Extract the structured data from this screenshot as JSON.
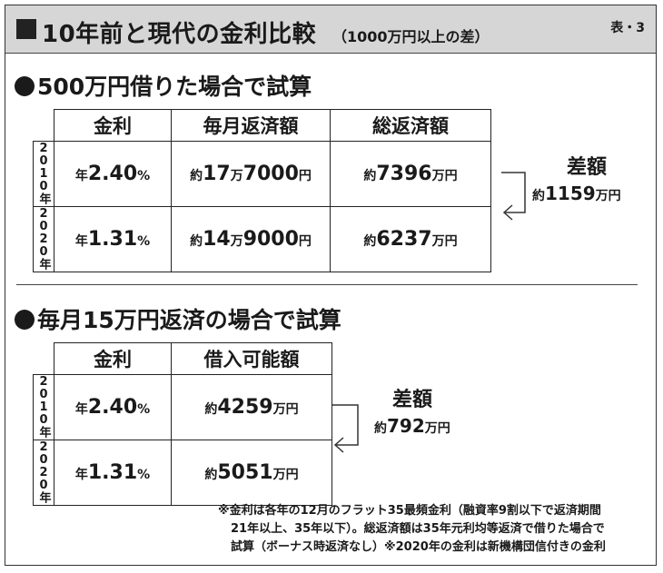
{
  "header": {
    "title": "10年前と現代の金利比較",
    "subtitle": "（1000万円以上の差）",
    "tag": "表・3"
  },
  "section1": {
    "title": "500万円借りた場合で試算",
    "columns": [
      "金利",
      "毎月返済額",
      "総返済額"
    ],
    "rows": [
      {
        "year": "2010年",
        "rate_prefix": "年",
        "rate": "2.40",
        "rate_unit": "%",
        "monthly_prefix": "約",
        "monthly_a": "17",
        "monthly_unit_a": "万",
        "monthly_b": "7000",
        "monthly_unit_b": "円",
        "total_prefix": "約",
        "total": "7396",
        "total_unit": "万円"
      },
      {
        "year": "2020年",
        "rate_prefix": "年",
        "rate": "1.31",
        "rate_unit": "%",
        "monthly_prefix": "約",
        "monthly_a": "14",
        "monthly_unit_a": "万",
        "monthly_b": "9000",
        "monthly_unit_b": "円",
        "total_prefix": "約",
        "total": "6237",
        "total_unit": "万円"
      }
    ],
    "diff_label": "差額",
    "diff_prefix": "約",
    "diff_value": "1159",
    "diff_unit": "万円"
  },
  "section2": {
    "title": "毎月15万円返済の場合で試算",
    "columns": [
      "金利",
      "借入可能額"
    ],
    "rows": [
      {
        "year": "2010年",
        "rate_prefix": "年",
        "rate": "2.40",
        "rate_unit": "%",
        "amount_prefix": "約",
        "amount": "4259",
        "amount_unit": "万円"
      },
      {
        "year": "2020年",
        "rate_prefix": "年",
        "rate": "1.31",
        "rate_unit": "%",
        "amount_prefix": "約",
        "amount": "5051",
        "amount_unit": "万円"
      }
    ],
    "diff_label": "差額",
    "diff_prefix": "約",
    "diff_value": "792",
    "diff_unit": "万円"
  },
  "note": {
    "lines": [
      "※金利は各年の12月のフラット35最頻金利（融資率9割以下で返済期間",
      "21年以上、35年以下）。総返済額は35年元利均等返済で借りた場合で",
      "試算（ボーナス時返済なし）※2020年の金利は新機構団信付きの金利"
    ]
  }
}
